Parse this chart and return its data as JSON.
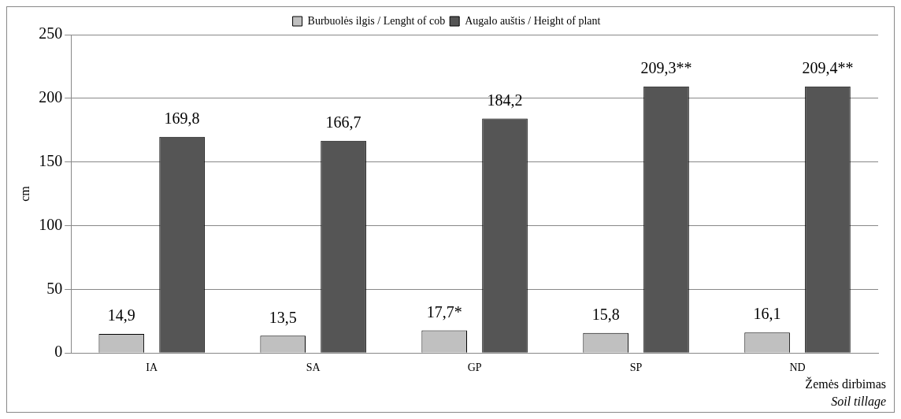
{
  "chart_data": {
    "type": "bar",
    "categories": [
      "IA",
      "SA",
      "GP",
      "SP",
      "ND"
    ],
    "ylabel": "cm",
    "xlabel": "Žemės dirbimas\nSoil tillage",
    "series": [
      {
        "name": "Burbuolės ilgis / Lenght of cob",
        "color": "#c0c0c0",
        "values": [
          14.9,
          13.5,
          17.7,
          15.8,
          16.1
        ],
        "value_labels": [
          "14,9",
          "13,5",
          "17,7*",
          "15,8",
          "16,1"
        ]
      },
      {
        "name": "Augalo auštis / Height of plant",
        "color": "#555555",
        "values": [
          169.8,
          166.7,
          184.2,
          209.3,
          209.4
        ],
        "value_labels": [
          "169,8",
          "166,7",
          "184,2",
          "209,3**",
          "209,4**"
        ]
      }
    ],
    "ylim": [
      0,
      250
    ],
    "yticks": [
      0,
      50,
      100,
      150,
      200,
      250
    ],
    "grid": "y",
    "legend": "top"
  }
}
